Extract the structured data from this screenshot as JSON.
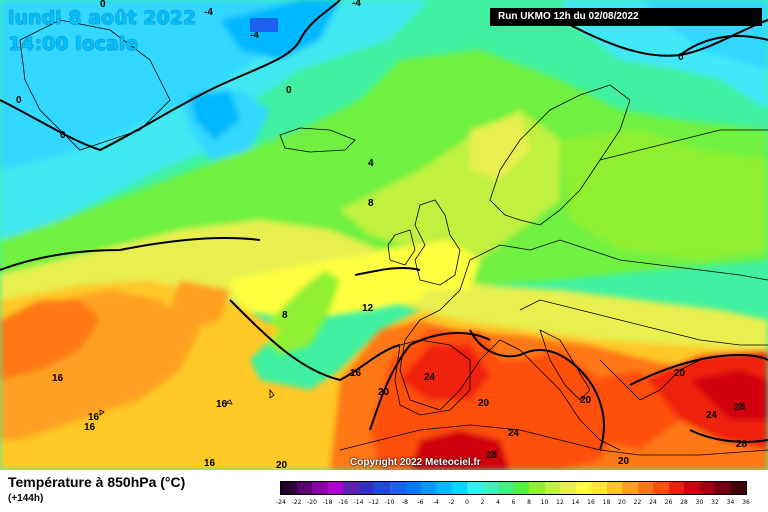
{
  "title": {
    "date": "lundi 8 août 2022",
    "time": "14:00 locale"
  },
  "run_info": "Run UKMO 12h du 02/08/2022",
  "copyright": "Copyright 2022 Meteociel.fr",
  "legend": {
    "title": "Température à 850hPa (°C)",
    "subtitle": "(+144h)",
    "ticks": [
      "-24",
      "-22",
      "-20",
      "-18",
      "-16",
      "-14",
      "-12",
      "-10",
      "-8",
      "-6",
      "-4",
      "-2",
      "0",
      "2",
      "4",
      "6",
      "8",
      "10",
      "12",
      "14",
      "16",
      "18",
      "20",
      "22",
      "24",
      "26",
      "28",
      "30",
      "32",
      "34",
      "36"
    ],
    "colors": [
      "#2a0030",
      "#5a0070",
      "#8a00a8",
      "#b000d0",
      "#6020b0",
      "#3030c0",
      "#2048d8",
      "#2060f0",
      "#0078ff",
      "#0098ff",
      "#00b8ff",
      "#00d8ff",
      "#30f0f0",
      "#40f0c0",
      "#40f080",
      "#50f040",
      "#90f030",
      "#c0f040",
      "#e8f050",
      "#ffff40",
      "#ffe830",
      "#ffc828",
      "#ffa020",
      "#ff7818",
      "#ff5010",
      "#f02010",
      "#d00010",
      "#a00010",
      "#700010",
      "#400008"
    ]
  },
  "contour_labels": [
    {
      "text": "0"
    },
    {
      "text": "-4"
    },
    {
      "text": "-4"
    },
    {
      "text": "-4"
    },
    {
      "text": "0"
    },
    {
      "text": "0"
    },
    {
      "text": "0"
    },
    {
      "text": "0"
    },
    {
      "text": "4"
    },
    {
      "text": "8"
    },
    {
      "text": "8"
    },
    {
      "text": "12"
    },
    {
      "text": "16"
    },
    {
      "text": "16"
    },
    {
      "text": "16"
    },
    {
      "text": "16"
    },
    {
      "text": "16"
    },
    {
      "text": "20"
    },
    {
      "text": "20"
    },
    {
      "text": "20"
    },
    {
      "text": "20"
    },
    {
      "text": "20"
    },
    {
      "text": "24"
    },
    {
      "text": "24"
    },
    {
      "text": "24"
    },
    {
      "text": "28"
    },
    {
      "text": "28"
    },
    {
      "text": "28"
    },
    {
      "text": "20"
    },
    {
      "text": "16"
    }
  ]
}
